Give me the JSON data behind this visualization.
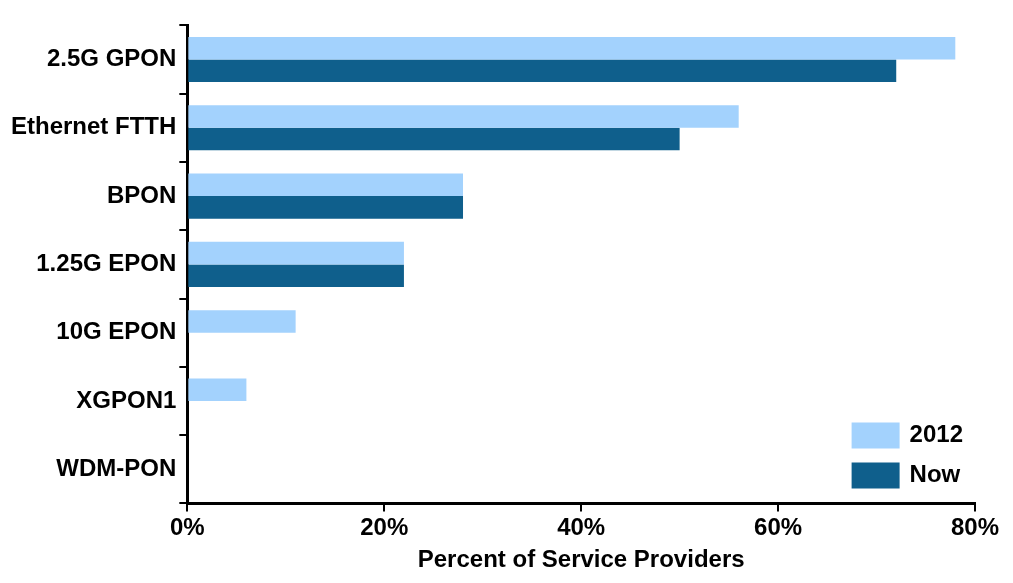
{
  "chart_data": {
    "type": "bar",
    "orientation": "horizontal",
    "xlabel": "Percent of Service Providers",
    "categories": [
      "2.5G GPON",
      "Ethernet FTTH",
      "BPON",
      "1.25G EPON",
      "10G EPON",
      "XGPON1",
      "WDM-PON"
    ],
    "series": [
      {
        "name": "2012",
        "color": "#a3d2fd",
        "values": [
          78,
          56,
          28,
          22,
          11,
          6,
          0
        ]
      },
      {
        "name": "Now",
        "color": "#0f5f8c",
        "values": [
          72,
          50,
          28,
          22,
          0,
          0,
          0
        ]
      }
    ],
    "xlim": [
      0,
      80
    ],
    "xticks": [
      {
        "value": 0,
        "label": "0%"
      },
      {
        "value": 20,
        "label": "20%"
      },
      {
        "value": 40,
        "label": "40%"
      },
      {
        "value": 60,
        "label": "60%"
      },
      {
        "value": 80,
        "label": "80%"
      }
    ],
    "grid": false,
    "legend": "bottom right"
  }
}
